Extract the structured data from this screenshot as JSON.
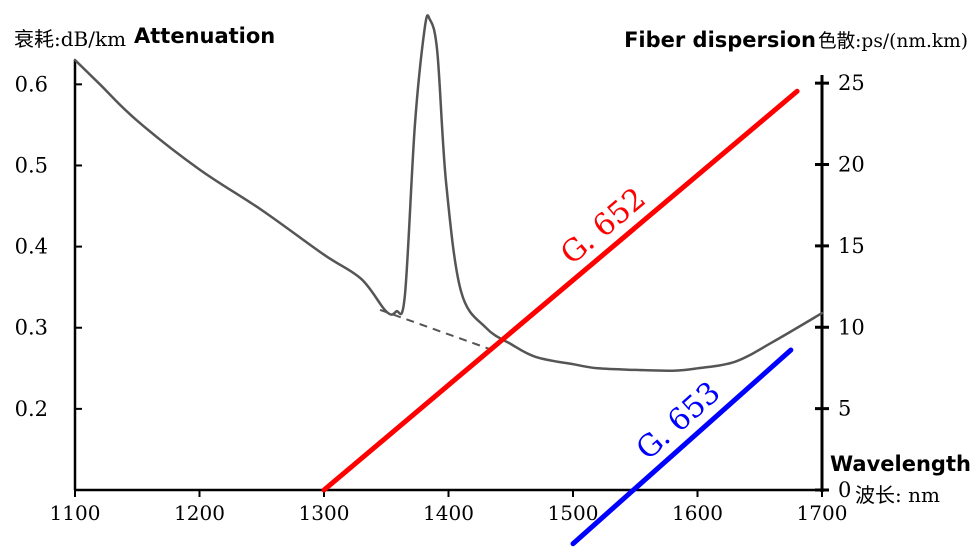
{
  "chart_data": {
    "type": "line",
    "x_ticks": [
      1100,
      1200,
      1300,
      1400,
      1500,
      1600,
      1700
    ],
    "y_left_ticks": [
      0.2,
      0.3,
      0.4,
      0.5,
      0.6
    ],
    "y_right_ticks": [
      0,
      5,
      10,
      15,
      20,
      25
    ],
    "xlim": [
      1100,
      1700
    ],
    "ylim_left": [
      0.1,
      0.63
    ],
    "ylim_right": [
      0,
      25.5
    ],
    "xlabel_en": "Wavelength",
    "xlabel_cn": "波长: nm",
    "ylabel_left_cn": "衰耗:dB/km",
    "ylabel_left_en": "Attenuation",
    "ylabel_right_en": "Fiber dispersion",
    "ylabel_right_cn": "色散:ps/(nm.km)",
    "attenuation": {
      "color": "#555555",
      "points": [
        [
          1100,
          0.63
        ],
        [
          1120,
          0.6
        ],
        [
          1150,
          0.555
        ],
        [
          1200,
          0.495
        ],
        [
          1250,
          0.445
        ],
        [
          1300,
          0.39
        ],
        [
          1330,
          0.36
        ],
        [
          1350,
          0.32
        ],
        [
          1358,
          0.32
        ],
        [
          1365,
          0.34
        ],
        [
          1373,
          0.55
        ],
        [
          1381,
          0.67
        ],
        [
          1385,
          0.68
        ],
        [
          1391,
          0.64
        ],
        [
          1398,
          0.48
        ],
        [
          1410,
          0.345
        ],
        [
          1430,
          0.3
        ],
        [
          1450,
          0.28
        ],
        [
          1470,
          0.264
        ],
        [
          1500,
          0.255
        ],
        [
          1520,
          0.25
        ],
        [
          1550,
          0.248
        ],
        [
          1580,
          0.247
        ],
        [
          1600,
          0.25
        ],
        [
          1630,
          0.258
        ],
        [
          1660,
          0.282
        ],
        [
          1700,
          0.318
        ]
      ],
      "dashed_baseline": [
        [
          1345,
          0.322
        ],
        [
          1440,
          0.27
        ]
      ]
    },
    "series": [
      {
        "name": "G. 652",
        "color": "#ff0000",
        "x": [
          1300,
          1680
        ],
        "y": [
          0,
          24.5
        ]
      },
      {
        "name": "G. 653",
        "color": "#0000ff",
        "x": [
          1500,
          1675
        ],
        "y": [
          -3.3,
          8.6
        ]
      }
    ]
  }
}
